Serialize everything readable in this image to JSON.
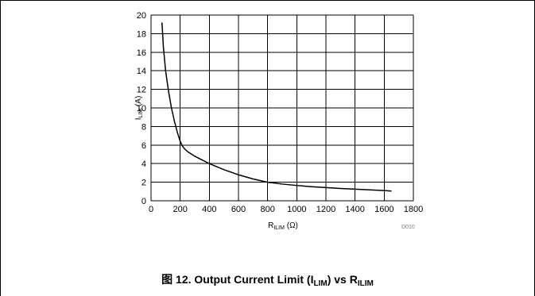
{
  "chart_data": {
    "type": "line",
    "title": "Output Current Limit (ILIM) vs RILIM",
    "xlabel": {
      "main": "R",
      "sub": "ILIM",
      "unit": " (Ω)"
    },
    "ylabel": {
      "main": "I",
      "sub": "LIM",
      "unit": " (A)"
    },
    "xlim": [
      0,
      1800
    ],
    "ylim": [
      0,
      20
    ],
    "xticks": [
      0,
      200,
      400,
      600,
      800,
      1000,
      1200,
      1400,
      1600,
      1800
    ],
    "yticks": [
      0,
      2,
      4,
      6,
      8,
      10,
      12,
      14,
      16,
      18,
      20
    ],
    "grid": true,
    "series": [
      {
        "color": "#000000",
        "x": [
          75,
          85,
          100,
          120,
          140,
          160,
          180,
          200,
          215,
          230,
          250,
          300,
          350,
          400,
          500,
          600,
          700,
          800,
          900,
          1000,
          1100,
          1200,
          1300,
          1400,
          1500,
          1600,
          1650
        ],
        "y": [
          19.2,
          16.5,
          14.0,
          11.8,
          10.0,
          8.6,
          7.4,
          6.4,
          5.9,
          5.6,
          5.3,
          4.8,
          4.4,
          4.0,
          3.35,
          2.8,
          2.35,
          2.0,
          1.8,
          1.65,
          1.52,
          1.42,
          1.33,
          1.25,
          1.17,
          1.1,
          1.05
        ]
      }
    ]
  },
  "figure_id": "D010",
  "caption": {
    "prefix": "图 12. Output Current Limit (",
    "sym1": "I",
    "sub1": "LIM",
    "middle": ") vs ",
    "sym2": "R",
    "sub2": "ILIM"
  }
}
